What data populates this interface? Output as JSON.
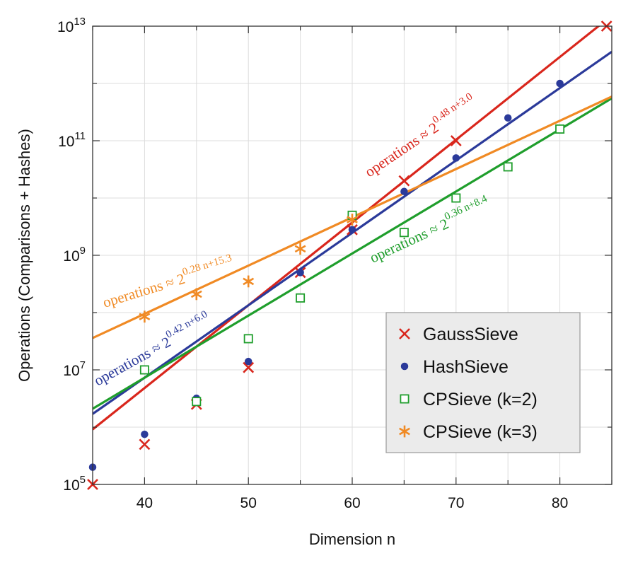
{
  "chart_data": {
    "type": "scatter",
    "xlabel": "Dimension  n",
    "ylabel": "Operations (Comparisons + Hashes)",
    "xlim": [
      35,
      85
    ],
    "ylim_log10": [
      5,
      13
    ],
    "y_scale": "log",
    "grid": true,
    "x_ticks": [
      40,
      50,
      60,
      70,
      80
    ],
    "x_tick_labels": [
      "40",
      "50",
      "60",
      "70",
      "80"
    ],
    "y_ticks_log10": [
      5,
      7,
      9,
      11,
      13
    ],
    "y_tick_labels": [
      {
        "base": "10",
        "exp": "5"
      },
      {
        "base": "10",
        "exp": "7"
      },
      {
        "base": "10",
        "exp": "9"
      },
      {
        "base": "10",
        "exp": "11"
      },
      {
        "base": "10",
        "exp": "13"
      }
    ],
    "legend_position": "bottom-right",
    "series": [
      {
        "name": "GaussSieve",
        "color": "#d9261c",
        "marker": "x",
        "points": [
          [
            35,
            100000
          ],
          [
            40,
            500000
          ],
          [
            45,
            2500000
          ],
          [
            50,
            11000000
          ],
          [
            55,
            500000000
          ],
          [
            60,
            2800000000
          ],
          [
            65,
            20000000000
          ],
          [
            70,
            100000000000
          ],
          [
            84.5,
            10000000000000
          ]
        ],
        "fit": {
          "slope": 0.48,
          "intercept": 3.0
        },
        "annotation": {
          "prefix": "operations  ≈ 2",
          "exponent": "0.48 n+3.0"
        }
      },
      {
        "name": "HashSieve",
        "color": "#2b3a9a",
        "marker": "circle",
        "points": [
          [
            35,
            200000
          ],
          [
            40,
            750000
          ],
          [
            45,
            3200000
          ],
          [
            50,
            14000000
          ],
          [
            55,
            500000000
          ],
          [
            60,
            2800000000
          ],
          [
            65,
            13000000000
          ],
          [
            70,
            50000000000
          ],
          [
            75,
            250000000000
          ],
          [
            80,
            1000000000000
          ]
        ],
        "fit": {
          "slope": 0.42,
          "intercept": 6.0
        },
        "annotation": {
          "prefix": "operations  ≈ 2",
          "exponent": "0.42 n+6.0"
        }
      },
      {
        "name": "CPSieve (k=2)",
        "color": "#1f9e2c",
        "marker": "square-open",
        "points": [
          [
            40,
            10000000
          ],
          [
            45,
            2800000
          ],
          [
            50,
            35000000
          ],
          [
            55,
            180000000
          ],
          [
            60,
            5000000000
          ],
          [
            65,
            2500000000
          ],
          [
            70,
            10000000000
          ],
          [
            75,
            35000000000
          ],
          [
            80,
            160000000000
          ]
        ],
        "fit": {
          "slope": 0.36,
          "intercept": 8.4
        },
        "annotation": {
          "prefix": "operations  ≈ 2",
          "exponent": "0.36 n+8.4"
        }
      },
      {
        "name": "CPSieve (k=3)",
        "color": "#f08a24",
        "marker": "star",
        "points": [
          [
            40,
            85000000
          ],
          [
            45,
            210000000
          ],
          [
            50,
            350000000
          ],
          [
            55,
            1300000000
          ],
          [
            60,
            4200000000
          ]
        ],
        "fit": {
          "slope": 0.28,
          "intercept": 15.3
        },
        "annotation": {
          "prefix": "operations  ≈ 2",
          "exponent": "0.28 n+15.3"
        }
      }
    ]
  }
}
